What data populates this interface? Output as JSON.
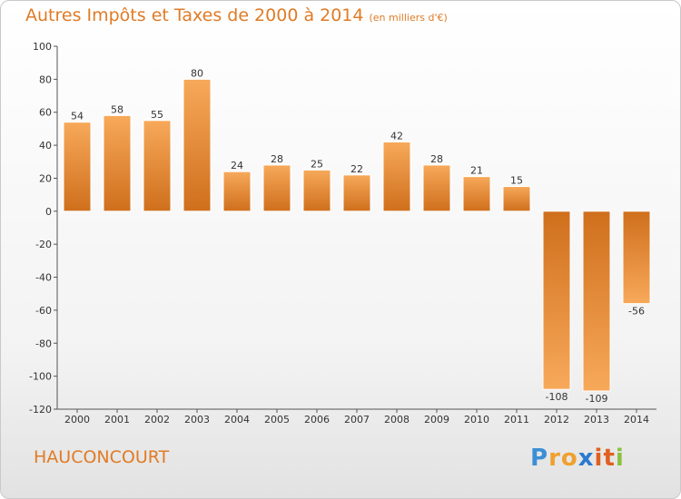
{
  "title": "Autres Impôts et Taxes de 2000 à 2014",
  "unit": "(en milliers d'€)",
  "place": "HAUCONCOURT",
  "logo": {
    "letters": [
      "P",
      "r",
      "o",
      "x",
      "i",
      "t",
      "i"
    ],
    "colors": [
      "#3b8fd6",
      "#f0a030",
      "#f0a030",
      "#2a7ad0",
      "#e06020",
      "#e06020",
      "#8cc040"
    ]
  },
  "colors": {
    "bar_top": "#f7a95a",
    "bar_bottom": "#cf6f1c",
    "accent": "#e07b25"
  },
  "chart_data": {
    "type": "bar",
    "categories": [
      "2000",
      "2001",
      "2002",
      "2003",
      "2004",
      "2005",
      "2006",
      "2007",
      "2008",
      "2009",
      "2010",
      "2011",
      "2012",
      "2013",
      "2014"
    ],
    "values": [
      54,
      58,
      55,
      80,
      24,
      28,
      25,
      22,
      42,
      28,
      21,
      15,
      -108,
      -109,
      -56
    ],
    "ylim": [
      -120,
      100
    ],
    "yticks": [
      100,
      80,
      60,
      40,
      20,
      0,
      -20,
      -40,
      -60,
      -80,
      -100,
      -120
    ],
    "grid": false
  }
}
